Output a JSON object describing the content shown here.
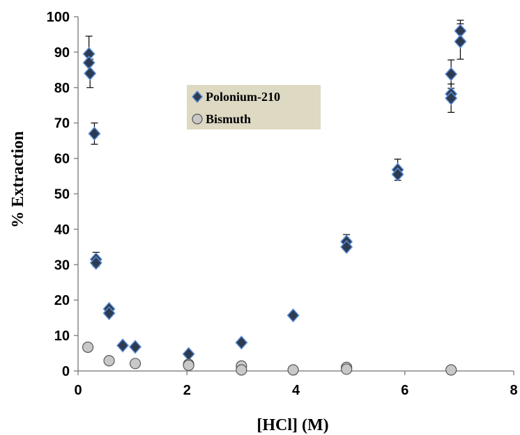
{
  "chart_data": {
    "type": "scatter",
    "title": "",
    "xlabel": "[HCl] (M)",
    "ylabel": "% Extraction",
    "xlim": [
      0,
      8
    ],
    "ylim": [
      0,
      100
    ],
    "x_ticks": [
      "0",
      "2",
      "4",
      "6",
      "8"
    ],
    "y_ticks": [
      "0",
      "10",
      "20",
      "30",
      "40",
      "50",
      "60",
      "70",
      "80",
      "90",
      "100"
    ],
    "grid": false,
    "legend_position": "top-center",
    "series": [
      {
        "name": "Polonium-210",
        "marker": "diamond",
        "color": "#2d3b52",
        "edge_color": "#5b8ed6",
        "points": [
          {
            "x": 0.2,
            "y": 89.5,
            "err": 5
          },
          {
            "x": 0.2,
            "y": 87,
            "err": 0
          },
          {
            "x": 0.22,
            "y": 84,
            "err": 4
          },
          {
            "x": 0.3,
            "y": 67,
            "err": 3
          },
          {
            "x": 0.33,
            "y": 31.5,
            "err": 2
          },
          {
            "x": 0.33,
            "y": 30.5,
            "err": 0
          },
          {
            "x": 0.57,
            "y": 17.5,
            "err": 0
          },
          {
            "x": 0.57,
            "y": 16.3,
            "err": 0
          },
          {
            "x": 0.82,
            "y": 7.2,
            "err": 0
          },
          {
            "x": 1.05,
            "y": 6.8,
            "err": 0
          },
          {
            "x": 2.03,
            "y": 4.8,
            "err": 0
          },
          {
            "x": 3.0,
            "y": 8.0,
            "err": 0
          },
          {
            "x": 3.95,
            "y": 15.7,
            "err": 0
          },
          {
            "x": 4.93,
            "y": 36.5,
            "err": 2
          },
          {
            "x": 4.93,
            "y": 35.0,
            "err": 0
          },
          {
            "x": 5.87,
            "y": 56.8,
            "err": 3
          },
          {
            "x": 5.87,
            "y": 55.5,
            "err": 0
          },
          {
            "x": 6.85,
            "y": 83.8,
            "err": 4
          },
          {
            "x": 6.85,
            "y": 78.2,
            "err": 0
          },
          {
            "x": 6.85,
            "y": 77.0,
            "err": 4
          },
          {
            "x": 7.02,
            "y": 96.0,
            "err": 3
          },
          {
            "x": 7.02,
            "y": 93.0,
            "err": 5
          }
        ]
      },
      {
        "name": "Bismuth",
        "marker": "circle",
        "color": "#c8c8c8",
        "edge_color": "#555555",
        "points": [
          {
            "x": 0.18,
            "y": 6.7
          },
          {
            "x": 0.57,
            "y": 2.9
          },
          {
            "x": 1.05,
            "y": 2.1
          },
          {
            "x": 2.03,
            "y": 1.9
          },
          {
            "x": 2.03,
            "y": 1.6
          },
          {
            "x": 3.0,
            "y": 1.4
          },
          {
            "x": 3.0,
            "y": 0.3
          },
          {
            "x": 3.95,
            "y": 0.3
          },
          {
            "x": 4.93,
            "y": 1.0
          },
          {
            "x": 4.93,
            "y": 0.5
          },
          {
            "x": 6.85,
            "y": 0.3
          }
        ]
      }
    ],
    "legend_background": "#ddd9c3"
  }
}
